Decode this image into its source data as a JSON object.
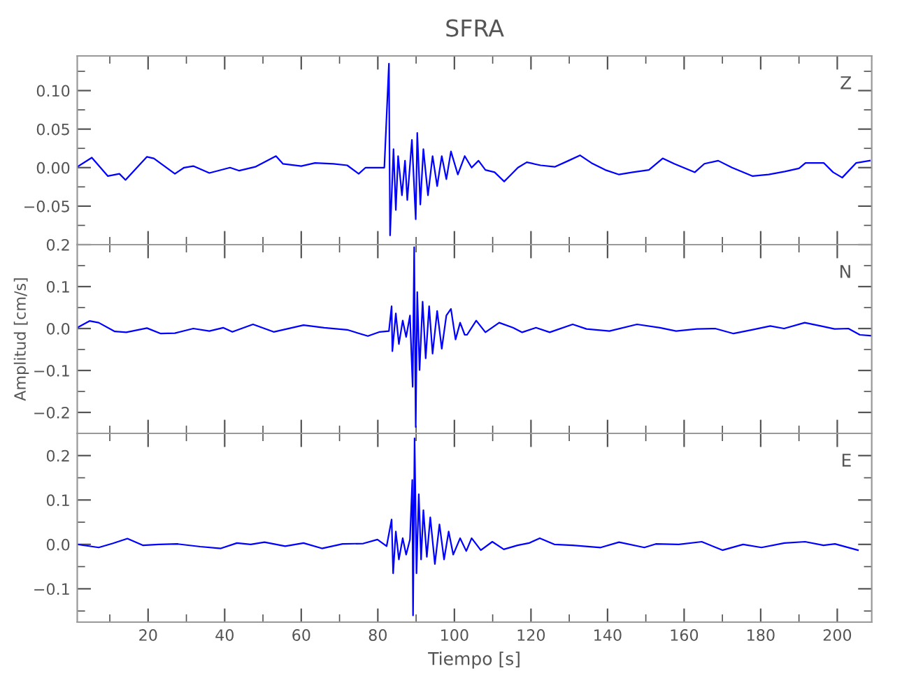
{
  "chart_data": [
    {
      "type": "line",
      "title": "SFRA",
      "annotations": [
        "Z"
      ],
      "xlim": [
        1.5,
        209
      ],
      "ylim": [
        -0.1,
        0.145
      ],
      "xticks": [
        20,
        40,
        60,
        80,
        100,
        120,
        140,
        160,
        180,
        200
      ],
      "yticks": [
        {
          "value": -0.05,
          "label": "−0.05"
        },
        {
          "value": 0,
          "label": "0.00"
        },
        {
          "value": 0.05,
          "label": "0.05"
        },
        {
          "value": 0.1,
          "label": "0.10"
        }
      ],
      "tick_labels": "y",
      "series": [
        {
          "color": "#0000ff",
          "x": [
            1.5,
            5.3,
            9.5,
            12.5,
            14.1,
            19.7,
            21.5,
            27,
            29.4,
            31.8,
            36,
            41.4,
            43.8,
            48,
            53.4,
            55.2,
            60,
            63.6,
            68.4,
            72,
            75,
            76.8,
            81.7,
            82.9,
            83.2,
            84.1,
            84.7,
            85.3,
            86.3,
            87.1,
            87.7,
            88.9,
            89.9,
            90.3,
            91.1,
            91.9,
            93.1,
            94.3,
            95.5,
            96.7,
            97.9,
            99.1,
            100.9,
            102.7,
            104.5,
            106.3,
            108.1,
            110.5,
            113,
            114.8,
            116.6,
            118.9,
            122.5,
            126.2,
            129.8,
            132.8,
            135.8,
            139.4,
            143,
            146.6,
            150.8,
            154.4,
            157.4,
            162.8,
            165.3,
            168.9,
            172.5,
            177.9,
            182.1,
            186.3,
            190,
            191.7,
            196.5,
            198.9,
            201.3,
            204.9,
            208.5
          ],
          "values": [
            0.001,
            0.013,
            -0.011,
            -0.008,
            -0.016,
            0.014,
            0.012,
            -0.008,
            0,
            0.002,
            -0.007,
            0,
            -0.004,
            0.001,
            0.015,
            0.005,
            0.002,
            0.006,
            0.005,
            0.003,
            -0.008,
            0,
            0,
            0.135,
            -0.088,
            0.024,
            -0.055,
            0.015,
            -0.036,
            0.009,
            -0.042,
            0.036,
            -0.067,
            0.045,
            -0.048,
            0.024,
            -0.036,
            0.015,
            -0.024,
            0.015,
            -0.015,
            0.021,
            -0.009,
            0.015,
            0,
            0.009,
            -0.003,
            -0.006,
            -0.018,
            -0.009,
            0,
            0.007,
            0.003,
            0.001,
            0.009,
            0.016,
            0.006,
            -0.003,
            -0.009,
            -0.006,
            -0.003,
            0.012,
            0.005,
            -0.006,
            0.005,
            0.009,
            0,
            -0.011,
            -0.009,
            -0.005,
            -0.001,
            0.006,
            0.006,
            -0.006,
            -0.013,
            0.006,
            0.009
          ]
        }
      ]
    },
    {
      "type": "line",
      "ylabel": "Amplitud [cm/s]",
      "annotations": [
        "N"
      ],
      "xlim": [
        1.5,
        209
      ],
      "ylim": [
        -0.25,
        0.2
      ],
      "xticks": [
        20,
        40,
        60,
        80,
        100,
        120,
        140,
        160,
        180,
        200
      ],
      "yticks": [
        {
          "value": -0.2,
          "label": "−0.2"
        },
        {
          "value": -0.1,
          "label": "−0.1"
        },
        {
          "value": 0,
          "label": "0.0"
        },
        {
          "value": 0.1,
          "label": "0.1"
        },
        {
          "value": 0.2,
          "label": "0.2"
        }
      ],
      "tick_labels": "y",
      "series": [
        {
          "color": "#0000ff",
          "x": [
            1.5,
            4.7,
            7.1,
            11.3,
            14.3,
            19.7,
            23.3,
            27,
            31.8,
            36,
            39.6,
            42,
            47.4,
            52.8,
            60.6,
            66,
            72,
            77.4,
            80.5,
            82.9,
            83.6,
            83.8,
            84.7,
            85.5,
            86.5,
            87.4,
            88.4,
            89.1,
            89.5,
            89.9,
            90.3,
            90.9,
            91.7,
            92.5,
            93.4,
            94.3,
            95.5,
            96.7,
            97.9,
            99.1,
            100.3,
            101.5,
            102.7,
            103.3,
            105.7,
            108.1,
            111.7,
            115.3,
            117.7,
            121.3,
            124.9,
            130.9,
            134.5,
            140.5,
            147.7,
            153.7,
            157.9,
            163.3,
            168.1,
            172.9,
            177.7,
            182.5,
            186.1,
            191.5,
            195.7,
            199.3,
            202.9,
            205.9,
            208.9
          ],
          "values": [
            0.002,
            0.018,
            0.014,
            -0.007,
            -0.009,
            0.001,
            -0.012,
            -0.011,
            0,
            -0.006,
            0.002,
            -0.008,
            0.01,
            -0.008,
            0.008,
            0.002,
            -0.003,
            -0.018,
            -0.008,
            -0.006,
            0.053,
            -0.054,
            0.036,
            -0.037,
            0.019,
            -0.02,
            0.031,
            -0.139,
            0.194,
            -0.235,
            0.087,
            -0.099,
            0.064,
            -0.071,
            0.053,
            -0.06,
            0.042,
            -0.048,
            0.031,
            0.047,
            -0.026,
            0.014,
            -0.015,
            -0.015,
            0.019,
            -0.009,
            0.014,
            0.002,
            -0.009,
            0.002,
            -0.009,
            0.01,
            -0.001,
            -0.006,
            0.01,
            0.002,
            -0.006,
            -0.001,
            0,
            -0.012,
            -0.003,
            0.006,
            0,
            0.014,
            0.006,
            -0.001,
            0,
            -0.015,
            -0.017
          ]
        }
      ]
    },
    {
      "type": "line",
      "xlabel": "Tiempo [s]",
      "annotations": [
        "E"
      ],
      "xlim": [
        1.5,
        209
      ],
      "ylim": [
        -0.175,
        0.25
      ],
      "xticks": [
        20,
        40,
        60,
        80,
        100,
        120,
        140,
        160,
        180,
        200
      ],
      "yticks": [
        {
          "value": -0.1,
          "label": "−0.1"
        },
        {
          "value": 0,
          "label": "0.0"
        },
        {
          "value": 0.1,
          "label": "0.1"
        },
        {
          "value": 0.2,
          "label": "0.2"
        }
      ],
      "series": [
        {
          "color": "#0000ff",
          "x": [
            1.5,
            7.1,
            10.7,
            14.6,
            18.6,
            22.8,
            27.6,
            33.6,
            39,
            43.2,
            46.8,
            50.4,
            55.8,
            60.6,
            65.4,
            70.8,
            76.2,
            79.9,
            82.3,
            83.6,
            84,
            84.7,
            85.5,
            86.5,
            87.4,
            88.4,
            89,
            89.2,
            89.6,
            90.1,
            90.7,
            91.3,
            91.9,
            92.8,
            93.7,
            94.9,
            96.1,
            97.3,
            98.5,
            99.7,
            101.5,
            103.1,
            104.5,
            106.9,
            109.9,
            112.9,
            116.5,
            119.5,
            122.3,
            126.1,
            130.9,
            138.2,
            143,
            149.6,
            152.6,
            158.6,
            164.6,
            170,
            175.4,
            180.2,
            186.2,
            191.6,
            196.4,
            199.4,
            205.4
          ],
          "values": [
            0,
            -0.007,
            0.002,
            0.013,
            -0.002,
            0,
            0.001,
            -0.005,
            -0.009,
            0.003,
            0,
            0.005,
            -0.004,
            0.003,
            -0.009,
            0.001,
            0.002,
            0.011,
            -0.004,
            0.056,
            -0.065,
            0.029,
            -0.034,
            0.014,
            -0.023,
            0.011,
            0.145,
            -0.16,
            0.239,
            -0.065,
            0.113,
            -0.034,
            0.077,
            -0.028,
            0.061,
            -0.044,
            0.045,
            -0.034,
            0.029,
            -0.023,
            0.014,
            -0.015,
            0.014,
            -0.013,
            0.006,
            -0.011,
            -0.002,
            0.003,
            0.014,
            0,
            -0.002,
            -0.007,
            0.005,
            -0.007,
            0.001,
            0,
            0.006,
            -0.013,
            0,
            -0.007,
            0.003,
            0.006,
            -0.002,
            0.001,
            -0.013
          ]
        }
      ]
    }
  ]
}
